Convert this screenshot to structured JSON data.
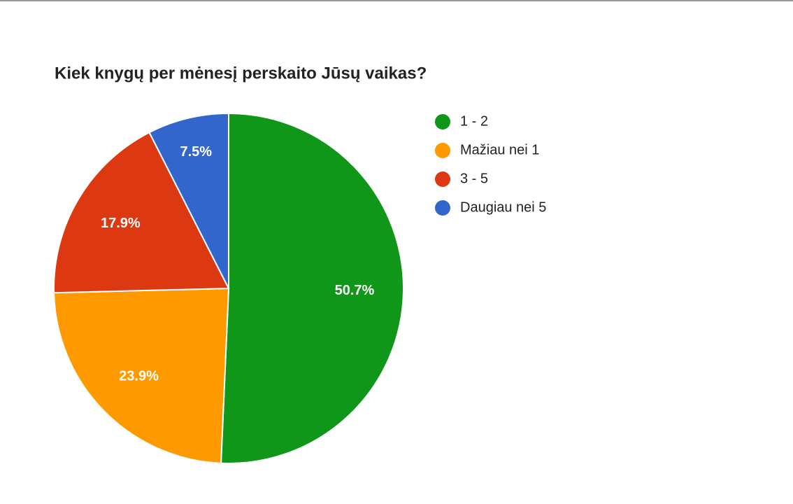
{
  "chart_data": {
    "type": "pie",
    "title": "Kiek knygų per mėnesį perskaito Jūsų vaikas?",
    "categories": [
      "1 - 2",
      "Mažiau nei 1",
      "3 - 5",
      "Daugiau nei 5"
    ],
    "values": [
      50.7,
      23.9,
      17.9,
      7.5
    ],
    "value_labels": [
      "50.7%",
      "23.9%",
      "17.9%",
      "7.5%"
    ],
    "colors": [
      "#109618",
      "#ff9900",
      "#dc3912",
      "#3366cc"
    ],
    "legend": "right"
  }
}
